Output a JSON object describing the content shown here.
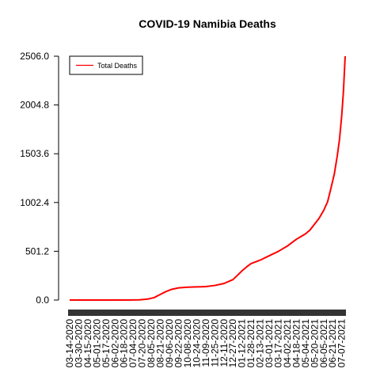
{
  "chart_data": {
    "type": "line",
    "title": "COVID-19 Namibia Deaths",
    "xlabel": "",
    "ylabel": "",
    "x_range": [
      "2020-03-14",
      "2021-07-13"
    ],
    "ylim": [
      0,
      2506.0
    ],
    "yticks": [
      "0.0",
      "501.2",
      "1002.4",
      "1503.6",
      "2004.8",
      "2506.0"
    ],
    "xticks": [
      "03-14-2020",
      "03-30-2020",
      "04-15-2020",
      "05-01-2020",
      "05-17-2020",
      "06-02-2020",
      "06-18-2020",
      "07-04-2020",
      "07-20-2020",
      "08-05-2020",
      "08-21-2020",
      "09-06-2020",
      "09-22-2020",
      "10-08-2020",
      "10-24-2020",
      "11-09-2020",
      "11-25-2020",
      "12-11-2020",
      "12-27-2020",
      "01-12-2021",
      "01-28-2021",
      "02-13-2021",
      "03-01-2021",
      "03-17-2021",
      "04-02-2021",
      "04-18-2021",
      "05-04-2021",
      "05-20-2021",
      "06-05-2021",
      "06-21-2021",
      "07-07-2021"
    ],
    "grid": false,
    "legend": {
      "position": "top-left",
      "entries": [
        "Total Deaths"
      ]
    },
    "series": [
      {
        "name": "Total Deaths",
        "color": "#ff0000",
        "points": [
          [
            "2020-03-14",
            0
          ],
          [
            "2020-06-18",
            0
          ],
          [
            "2020-07-15",
            2
          ],
          [
            "2020-07-30",
            10
          ],
          [
            "2020-08-10",
            25
          ],
          [
            "2020-08-20",
            55
          ],
          [
            "2020-08-30",
            85
          ],
          [
            "2020-09-10",
            110
          ],
          [
            "2020-09-22",
            125
          ],
          [
            "2020-10-08",
            132
          ],
          [
            "2020-10-24",
            135
          ],
          [
            "2020-11-09",
            138
          ],
          [
            "2020-11-25",
            150
          ],
          [
            "2020-12-11",
            170
          ],
          [
            "2020-12-27",
            210
          ],
          [
            "2021-01-05",
            260
          ],
          [
            "2021-01-12",
            300
          ],
          [
            "2021-01-20",
            340
          ],
          [
            "2021-01-28",
            375
          ],
          [
            "2021-02-13",
            410
          ],
          [
            "2021-03-01",
            455
          ],
          [
            "2021-03-17",
            500
          ],
          [
            "2021-04-02",
            555
          ],
          [
            "2021-04-18",
            625
          ],
          [
            "2021-05-04",
            680
          ],
          [
            "2021-05-12",
            720
          ],
          [
            "2021-05-20",
            780
          ],
          [
            "2021-05-28",
            840
          ],
          [
            "2021-06-05",
            920
          ],
          [
            "2021-06-12",
            1010
          ],
          [
            "2021-06-18",
            1150
          ],
          [
            "2021-06-24",
            1300
          ],
          [
            "2021-06-29",
            1480
          ],
          [
            "2021-07-03",
            1650
          ],
          [
            "2021-07-07",
            1900
          ],
          [
            "2021-07-10",
            2150
          ],
          [
            "2021-07-13",
            2506
          ]
        ]
      }
    ]
  }
}
